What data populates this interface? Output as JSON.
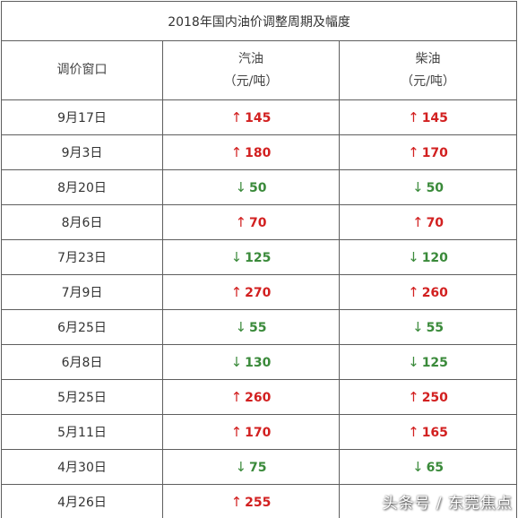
{
  "table": {
    "title": "2018年国内油价调整周期及幅度",
    "headers": {
      "window": "调价窗口",
      "gasoline": "汽油",
      "diesel": "柴油",
      "unit": "（元/吨）"
    },
    "arrows": {
      "up": "↑",
      "down": "↓"
    },
    "colors": {
      "up": "#d22020",
      "down": "#3a8a3a"
    },
    "rows": [
      {
        "date": "9月17日",
        "gasoline_dir": "up",
        "gasoline": "145",
        "diesel_dir": "up",
        "diesel": "145"
      },
      {
        "date": "9月3日",
        "gasoline_dir": "up",
        "gasoline": "180",
        "diesel_dir": "up",
        "diesel": "170"
      },
      {
        "date": "8月20日",
        "gasoline_dir": "down",
        "gasoline": "50",
        "diesel_dir": "down",
        "diesel": "50"
      },
      {
        "date": "8月6日",
        "gasoline_dir": "up",
        "gasoline": "70",
        "diesel_dir": "up",
        "diesel": "70"
      },
      {
        "date": "7月23日",
        "gasoline_dir": "down",
        "gasoline": "125",
        "diesel_dir": "down",
        "diesel": "120"
      },
      {
        "date": "7月9日",
        "gasoline_dir": "up",
        "gasoline": "270",
        "diesel_dir": "up",
        "diesel": "260"
      },
      {
        "date": "6月25日",
        "gasoline_dir": "down",
        "gasoline": "55",
        "diesel_dir": "down",
        "diesel": "55"
      },
      {
        "date": "6月8日",
        "gasoline_dir": "down",
        "gasoline": "130",
        "diesel_dir": "down",
        "diesel": "125"
      },
      {
        "date": "5月25日",
        "gasoline_dir": "up",
        "gasoline": "260",
        "diesel_dir": "up",
        "diesel": "250"
      },
      {
        "date": "5月11日",
        "gasoline_dir": "up",
        "gasoline": "170",
        "diesel_dir": "up",
        "diesel": "165"
      },
      {
        "date": "4月30日",
        "gasoline_dir": "down",
        "gasoline": "75",
        "diesel_dir": "down",
        "diesel": "65"
      },
      {
        "date": "4月26日",
        "gasoline_dir": "up",
        "gasoline": "255",
        "diesel_dir": "up",
        "diesel": ""
      }
    ]
  },
  "watermark": "头条号 / 东莞焦点"
}
